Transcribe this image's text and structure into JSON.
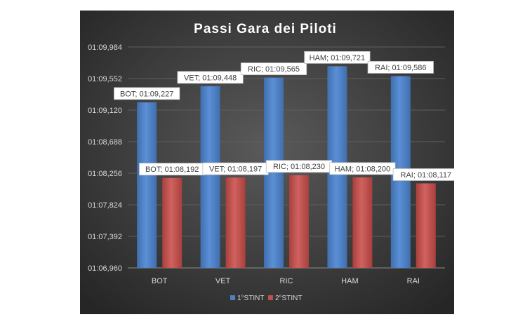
{
  "chart_data": {
    "type": "bar",
    "title": "Passi  Gara dei Piloti",
    "categories": [
      "BOT",
      "VET",
      "RIC",
      "HAM",
      "RAI"
    ],
    "yticks": [
      "01:06,960",
      "01:07,392",
      "01:07,824",
      "01:08,256",
      "01:08,688",
      "01:09,120",
      "01:09,552",
      "01:09,984"
    ],
    "ylim": [
      66.96,
      69.984
    ],
    "grid": true,
    "legend_position": "bottom",
    "series": [
      {
        "name": "1°STINT",
        "color": "#4f81bd",
        "values": [
          69.227,
          69.448,
          69.565,
          69.721,
          69.586
        ],
        "labels": [
          "BOT; 01:09,227",
          "VET; 01:09,448",
          "RIC; 01:09,565",
          "HAM; 01:09,721",
          "RAI; 01:09,586"
        ]
      },
      {
        "name": "2°STINT",
        "color": "#c0504d",
        "values": [
          68.192,
          68.197,
          68.23,
          68.2,
          68.117
        ],
        "labels": [
          "BOT; 01:08,192",
          "VET; 01:08,197",
          "RIC; 01:08,230",
          "HAM; 01:08,200",
          "RAI; 01:08,117"
        ]
      }
    ]
  }
}
